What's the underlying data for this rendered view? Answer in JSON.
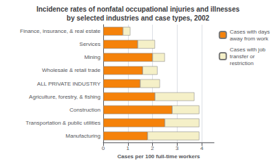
{
  "chart_data": {
    "type": "bar",
    "orientation": "horizontal",
    "stacked": true,
    "title": "Incidence rates of nonfatal occupational injuries and illnesses\nby selected industries and case types, 2002",
    "xlabel": "Cases per 100 full-time workers",
    "categories": [
      "Manufacturing",
      "Transportation & public utilities",
      "Construction",
      "Agriculture, forestry, & fishing",
      "ALL PRIVATE INDUSTRY",
      "Wholesale & retail trade",
      "Mining",
      "Services",
      "Finance, insurance, & real estate"
    ],
    "series": [
      {
        "name": "Cases with days\naway from work",
        "color": "#F5820A",
        "values": [
          1.8,
          2.5,
          2.8,
          2.1,
          1.5,
          1.6,
          2.0,
          1.4,
          0.8
        ]
      },
      {
        "name": "Cases with job\ntransfer or\nrestriction",
        "color": "#F5F0C8",
        "values": [
          2.1,
          1.4,
          1.1,
          1.6,
          0.8,
          0.6,
          0.5,
          0.7,
          0.3
        ]
      }
    ],
    "xlim": [
      0,
      4.5
    ],
    "xticks": [
      0,
      1,
      2,
      3,
      4
    ],
    "grid": true,
    "legend": "upper right"
  }
}
